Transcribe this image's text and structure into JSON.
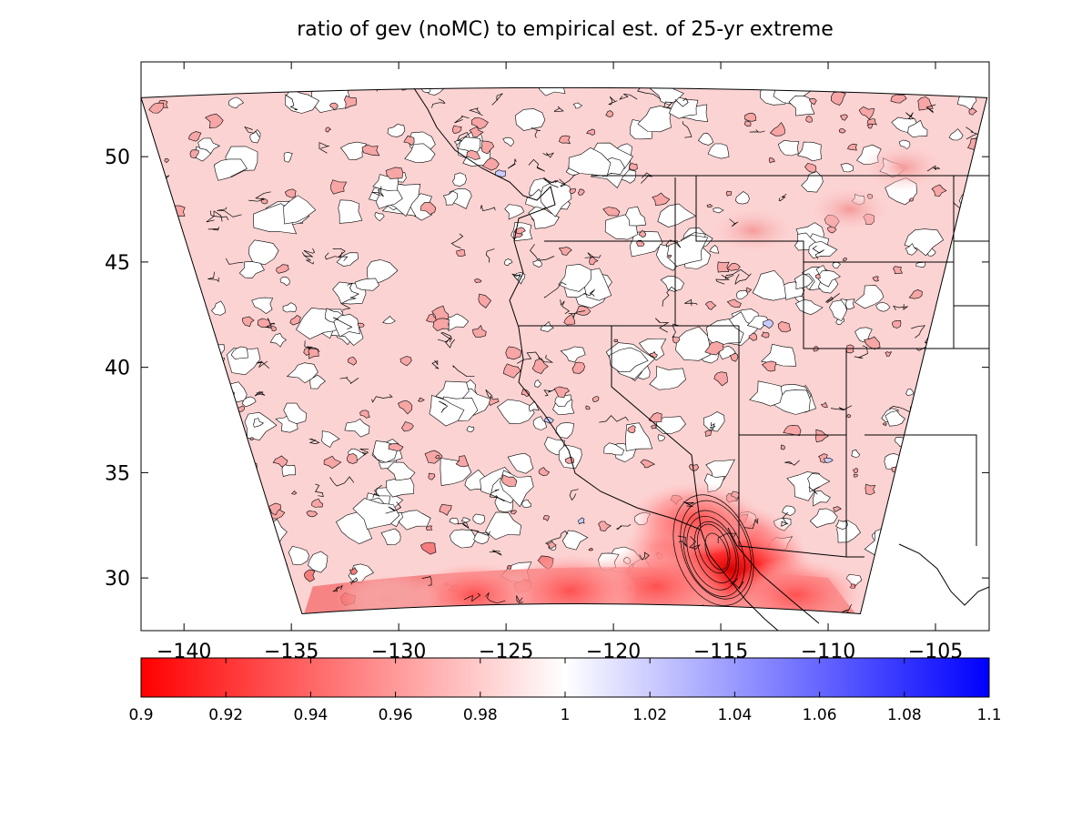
{
  "chart_data": [
    {
      "type": "heatmap",
      "title": "ratio of gev (noMC) to empirical est. of 25-yr extreme",
      "xlabel": "",
      "ylabel": "",
      "xlim": [
        -142,
        -102.5
      ],
      "ylim": [
        27.5,
        54.5
      ],
      "xticks": [
        -140,
        -135,
        -130,
        -125,
        -120,
        -115,
        -110,
        -105
      ],
      "xtick_labels": [
        "−140",
        "−135",
        "−130",
        "−125",
        "−120",
        "−115",
        "−110",
        "−105"
      ],
      "yticks": [
        30,
        35,
        40,
        45,
        50
      ],
      "ytick_labels": [
        "30",
        "35",
        "40",
        "45",
        "50"
      ],
      "grid": false,
      "description_of_field": "mostly light red (~0.97-0.99) with white patches (~1.0); strong red (~0.90-0.93) along southern edge near -120 to -112, 29-31; darkest near -115, 30-33; few small blue patches (~1.01)",
      "domain_corners": {
        "top_left": [
          -142,
          52.8
        ],
        "top_right": [
          -102.6,
          52.8
        ],
        "bottom_left": [
          -134.5,
          28.3
        ],
        "bottom_right": [
          -108.5,
          28.3
        ]
      },
      "hotspots": [
        {
          "lon": -115.3,
          "lat": 31.3,
          "value": 0.9
        },
        {
          "lon": -114.5,
          "lat": 30.4,
          "value": 0.91
        },
        {
          "lon": -118.0,
          "lat": 29.6,
          "value": 0.92
        },
        {
          "lon": -122.0,
          "lat": 29.4,
          "value": 0.93
        },
        {
          "lon": -126.5,
          "lat": 29.2,
          "value": 0.94
        },
        {
          "lon": -130.5,
          "lat": 29.0,
          "value": 0.95
        },
        {
          "lon": -111.5,
          "lat": 29.2,
          "value": 0.93
        },
        {
          "lon": -116.2,
          "lat": 32.8,
          "value": 0.93
        },
        {
          "lon": -109.0,
          "lat": 47.5,
          "value": 0.96
        },
        {
          "lon": -113.5,
          "lat": 46.5,
          "value": 0.96
        },
        {
          "lon": -106.5,
          "lat": 49.5,
          "value": 0.96
        }
      ],
      "white_patches": [
        {
          "lon": -130.0,
          "lat": 48.5
        },
        {
          "lon": -126.5,
          "lat": 50.3
        },
        {
          "lon": -121.0,
          "lat": 44.0
        },
        {
          "lon": -118.5,
          "lat": 40.5
        },
        {
          "lon": -123.0,
          "lat": 47.5
        },
        {
          "lon": -117.0,
          "lat": 45.5
        },
        {
          "lon": -133.0,
          "lat": 42.0
        },
        {
          "lon": -127.5,
          "lat": 38.5
        },
        {
          "lon": -135.5,
          "lat": 47.0
        },
        {
          "lon": -120.5,
          "lat": 49.5
        },
        {
          "lon": -112.0,
          "lat": 38.5
        },
        {
          "lon": -125.0,
          "lat": 34.0
        },
        {
          "lon": -130.5,
          "lat": 33.0
        },
        {
          "lon": -114.0,
          "lat": 42.0
        },
        {
          "lon": -110.5,
          "lat": 44.0
        }
      ],
      "blue_patches": [
        {
          "lon": -125.2,
          "lat": 49.2
        },
        {
          "lon": -121.5,
          "lat": 32.7
        },
        {
          "lon": -110.0,
          "lat": 35.6
        },
        {
          "lon": -107.5,
          "lat": 27.8
        },
        {
          "lon": -123.0,
          "lat": 37.5
        },
        {
          "lon": -112.8,
          "lat": 42.1
        }
      ]
    },
    {
      "type": "heatmap",
      "colorbar": {
        "min": 0.9,
        "max": 1.1,
        "ticks": [
          0.9,
          0.92,
          0.94,
          0.96,
          0.98,
          1,
          1.02,
          1.04,
          1.06,
          1.08,
          1.1
        ],
        "tick_labels": [
          "0.9",
          "0.92",
          "0.94",
          "0.96",
          "0.98",
          "1",
          "1.02",
          "1.04",
          "1.06",
          "1.08",
          "1.1"
        ],
        "colors": {
          "low": "#ff0000",
          "mid": "#ffffff",
          "high": "#0000ff"
        }
      }
    }
  ],
  "colors": {
    "background_light_red": "#fcd3d3",
    "contour": "#000000",
    "coast": "#000000"
  }
}
